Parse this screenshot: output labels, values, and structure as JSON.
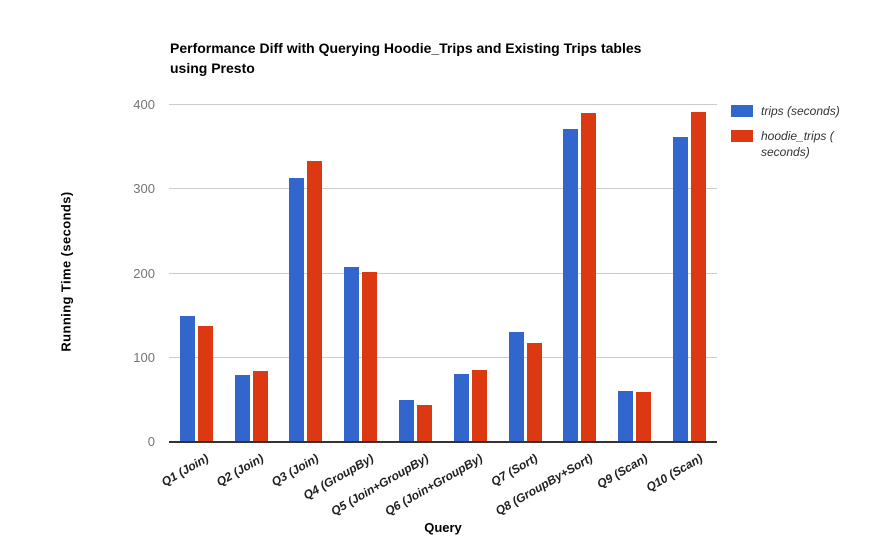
{
  "chart_title_lines": [
    "Performance Diff with Querying Hoodie_Trips and Existing Trips tables",
    "using Presto"
  ],
  "chart_data": {
    "type": "bar",
    "title": "Performance Diff with Querying Hoodie_Trips and Existing Trips tables using Presto",
    "xlabel": "Query",
    "ylabel": "Running Time (seconds)",
    "categories": [
      "Q1 (Join)",
      "Q2 (Join)",
      "Q3 (Join)",
      "Q4 (GroupBy)",
      "Q5 (Join+GroupBy)",
      "Q6 (Join+GroupBy)",
      "Q7 (Sort)",
      "Q8 (GroupBy+Sort)",
      "Q9 (Scan)",
      "Q10 (Scan)"
    ],
    "series": [
      {
        "name": "trips (seconds)",
        "color": "#3366CC",
        "values": [
          150,
          80,
          313,
          208,
          50,
          81,
          131,
          371,
          60,
          362
        ]
      },
      {
        "name": "hoodie_trips ( seconds)",
        "color": "#DC3912",
        "values": [
          138,
          84,
          333,
          202,
          44,
          85,
          117,
          390,
          59,
          392
        ]
      }
    ],
    "ylim": [
      0,
      400
    ],
    "yticks": [
      0,
      100,
      200,
      300,
      400
    ],
    "grid": true,
    "legend_position": "right",
    "colors": {
      "gridline": "#CCCCCC",
      "axis_line": "#333333",
      "tick_label": "#757575",
      "text": "#000000"
    }
  }
}
